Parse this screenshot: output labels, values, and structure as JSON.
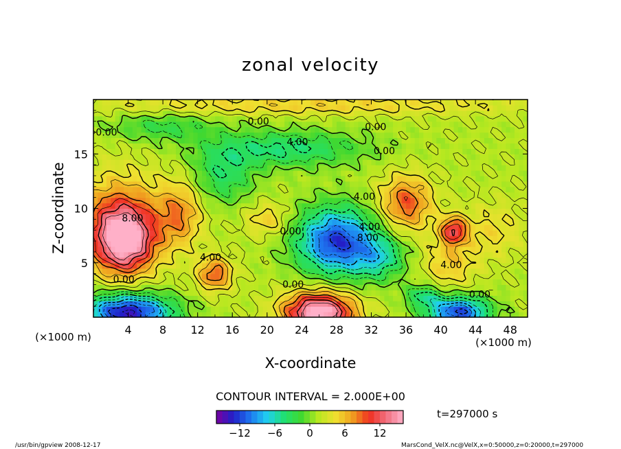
{
  "chart_data": {
    "type": "heatmap",
    "title": "zonal velocity",
    "xlabel": "X-coordinate",
    "ylabel": "Z-coordinate",
    "x_unit": "(×1000 m)",
    "y_unit": "(×1000 m)",
    "xlim": [
      0,
      50
    ],
    "ylim": [
      0,
      20
    ],
    "x_ticks": [
      "4",
      "8",
      "12",
      "16",
      "20",
      "24",
      "28",
      "32",
      "36",
      "40",
      "44",
      "48"
    ],
    "y_ticks": [
      "5",
      "10",
      "15"
    ],
    "contour_interval_label": "CONTOUR INTERVAL = 2.000E+00",
    "time_label": "t=297000 s",
    "colorbar": {
      "min": -16,
      "max": 16,
      "step": 1,
      "ticks": [
        "−12",
        "−6",
        "0",
        "6",
        "12"
      ]
    },
    "contour_labels": [
      {
        "text": "0.00",
        "x": 19,
        "z": 17.7
      },
      {
        "text": "0.00",
        "x": 1.5,
        "z": 16.7
      },
      {
        "text": "4.00",
        "x": 23.5,
        "z": 15.8
      },
      {
        "text": "0.00",
        "x": 32.5,
        "z": 17.2
      },
      {
        "text": "0.00",
        "x": 33.5,
        "z": 15.0
      },
      {
        "text": "8.00",
        "x": 4.5,
        "z": 8.8
      },
      {
        "text": "4.00",
        "x": 31.2,
        "z": 10.8
      },
      {
        "text": "4.00",
        "x": 31.8,
        "z": 8.0
      },
      {
        "text": "8.00",
        "x": 31.6,
        "z": 7.0
      },
      {
        "text": "4.00",
        "x": 13.5,
        "z": 5.2
      },
      {
        "text": "0.00",
        "x": 22.7,
        "z": 7.6
      },
      {
        "text": "4.00",
        "x": 41.2,
        "z": 4.5
      },
      {
        "text": "0.00",
        "x": 3.5,
        "z": 3.2
      },
      {
        "text": "0.00",
        "x": 23.0,
        "z": 2.7
      },
      {
        "text": "0.00",
        "x": 44.5,
        "z": 1.8
      }
    ],
    "features": [
      {
        "x": 3.5,
        "z": 7.0,
        "value": 14,
        "sx": 3.5,
        "sz": 3.0
      },
      {
        "x": 3.0,
        "z": 9.5,
        "value": 6,
        "sx": 5,
        "sz": 4
      },
      {
        "x": 10.0,
        "z": 9.5,
        "value": 6,
        "sx": 2.5,
        "sz": 3
      },
      {
        "x": 14.0,
        "z": 4.0,
        "value": 8,
        "sx": 2,
        "sz": 1.5
      },
      {
        "x": 28.0,
        "z": 7.0,
        "value": -14,
        "sx": 4.5,
        "sz": 3.0
      },
      {
        "x": 33.0,
        "z": 5.5,
        "value": -6,
        "sx": 3,
        "sz": 2
      },
      {
        "x": 22.0,
        "z": 15.5,
        "value": -6,
        "sx": 9,
        "sz": 1.6
      },
      {
        "x": 15.0,
        "z": 13.0,
        "value": -5,
        "sx": 3.5,
        "sz": 2.5
      },
      {
        "x": 8.0,
        "z": 17.5,
        "value": -4,
        "sx": 6,
        "sz": 1.2
      },
      {
        "x": 36.0,
        "z": 10.5,
        "value": 8,
        "sx": 3,
        "sz": 2.5
      },
      {
        "x": 41.5,
        "z": 8.0,
        "value": 10,
        "sx": 1.5,
        "sz": 1.2
      },
      {
        "x": 41.0,
        "z": 5.0,
        "value": 4,
        "sx": 3,
        "sz": 2.5
      },
      {
        "x": 20.0,
        "z": 9.0,
        "value": 4,
        "sx": 2.5,
        "sz": 1.5
      },
      {
        "x": 26.0,
        "z": 0.5,
        "value": 16,
        "sx": 4,
        "sz": 1.8
      },
      {
        "x": 4.0,
        "z": 0.5,
        "value": -16,
        "sx": 5,
        "sz": 1.6
      },
      {
        "x": 42.0,
        "z": 0.5,
        "value": -14,
        "sx": 3.5,
        "sz": 1.4
      },
      {
        "x": 38.0,
        "z": 2.0,
        "value": -6,
        "sx": 2,
        "sz": 1.0
      },
      {
        "x": 46.0,
        "z": 8.0,
        "value": 3,
        "sx": 3.5,
        "sz": 2.5
      },
      {
        "x": 25.0,
        "z": 19.5,
        "value": 4,
        "sx": 25,
        "sz": 0.8
      }
    ]
  },
  "footer": {
    "left": "/usr/bin/gpview   2008-12-17",
    "right": "MarsCond_VelX.nc@VelX,x=0:50000,z=0:20000,t=297000"
  },
  "colors": {
    "palette": [
      "#7a00a0",
      "#2020c8",
      "#1e78f0",
      "#20d0f0",
      "#20e070",
      "#40d830",
      "#b8e820",
      "#f0e030",
      "#f0a020",
      "#f03020",
      "#f07080",
      "#ffb0c8"
    ]
  }
}
